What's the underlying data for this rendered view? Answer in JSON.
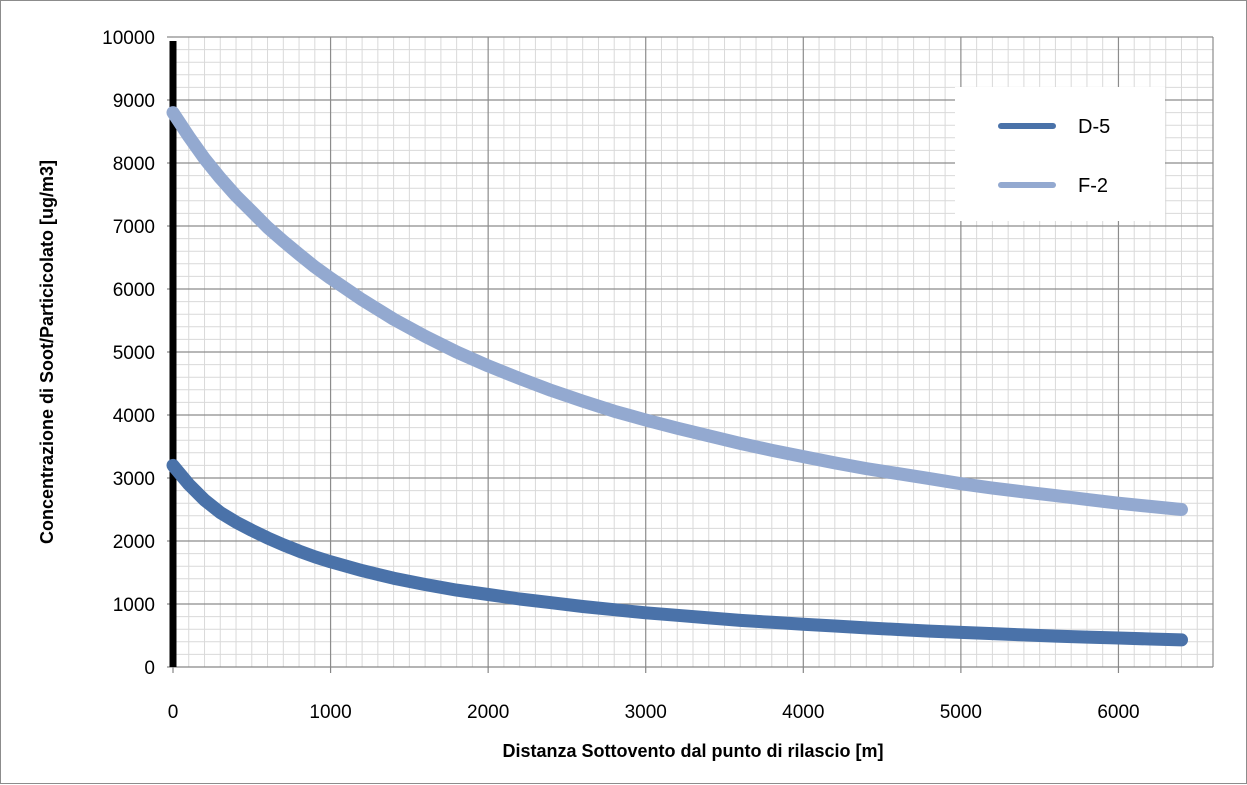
{
  "chart_data": {
    "type": "line",
    "title": "",
    "xlabel": "Distanza Sottovento dal punto di rilascio  [m]",
    "ylabel": "Concentrazione di Soot/Particicolato  [ug/m3]",
    "xlim": [
      0,
      6600
    ],
    "ylim": [
      0,
      10000
    ],
    "x_ticks": [
      0,
      1000,
      2000,
      3000,
      4000,
      5000,
      6000
    ],
    "x_tick_labels": [
      "0",
      "1000",
      "2000",
      "3000",
      "4000",
      "5000",
      "6000"
    ],
    "y_ticks": [
      0,
      1000,
      2000,
      3000,
      4000,
      5000,
      6000,
      7000,
      8000,
      9000,
      10000
    ],
    "y_tick_labels": [
      "0",
      "1000",
      "2000",
      "3000",
      "4000",
      "5000",
      "6000",
      "7000",
      "8000",
      "9000",
      "10000"
    ],
    "grid": true,
    "minor_grid": true,
    "legend_position": "top-right",
    "x": [
      0,
      100,
      200,
      300,
      400,
      500,
      600,
      700,
      800,
      900,
      1000,
      1200,
      1400,
      1600,
      1800,
      2000,
      2200,
      2400,
      2600,
      2800,
      3000,
      3200,
      3400,
      3600,
      3800,
      4000,
      4200,
      4400,
      4600,
      4800,
      5000,
      5200,
      5400,
      5600,
      5800,
      6000,
      6200,
      6400
    ],
    "series": [
      {
        "name": "D-5",
        "color": "#4a72a9",
        "values": [
          3200,
          2900,
          2650,
          2450,
          2300,
          2170,
          2050,
          1940,
          1840,
          1750,
          1670,
          1530,
          1410,
          1310,
          1220,
          1150,
          1080,
          1020,
          960,
          910,
          860,
          820,
          780,
          740,
          710,
          680,
          650,
          620,
          595,
          570,
          550,
          530,
          510,
          490,
          475,
          460,
          445,
          430
        ]
      },
      {
        "name": "F-2",
        "color": "#93a9d0",
        "values": [
          8800,
          8420,
          8070,
          7760,
          7480,
          7230,
          6980,
          6760,
          6550,
          6350,
          6170,
          5830,
          5520,
          5250,
          5000,
          4780,
          4580,
          4390,
          4220,
          4060,
          3920,
          3790,
          3670,
          3550,
          3440,
          3340,
          3240,
          3150,
          3070,
          2990,
          2910,
          2840,
          2780,
          2720,
          2660,
          2600,
          2550,
          2500
        ]
      }
    ]
  }
}
